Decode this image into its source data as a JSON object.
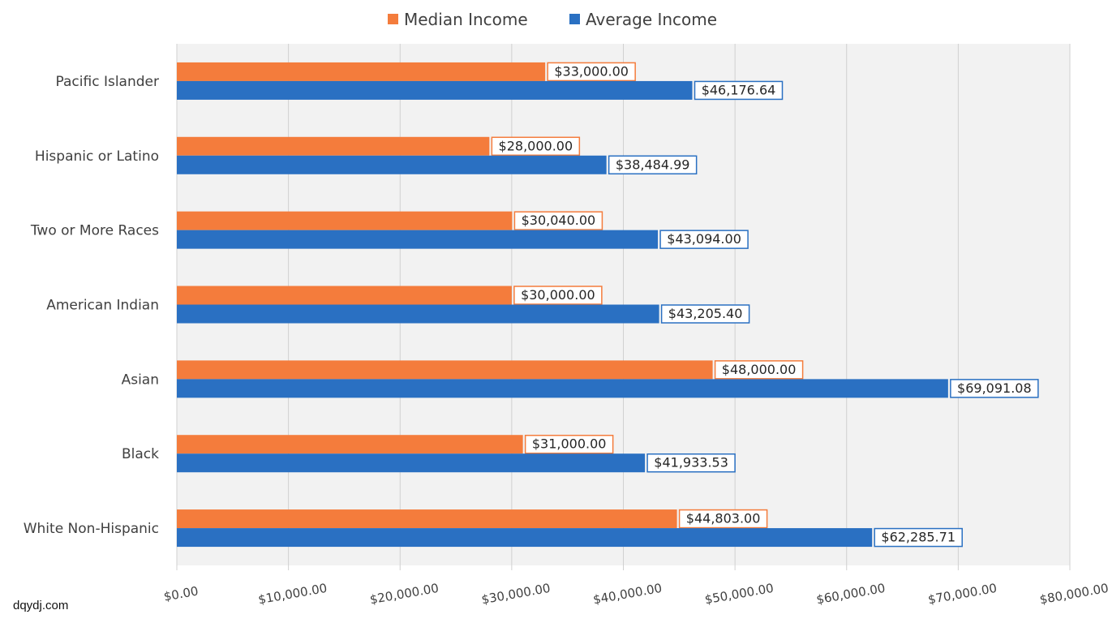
{
  "watermark": "dqydj.com",
  "chart_data": {
    "type": "bar",
    "orientation": "horizontal",
    "categories": [
      "Pacific Islander",
      "Hispanic or Latino",
      "Two or More Races",
      "American Indian",
      "Asian",
      "Black",
      "White Non-Hispanic"
    ],
    "series": [
      {
        "name": "Median Income",
        "color": "#f47c3c",
        "values": [
          33000.0,
          28000.0,
          30040.0,
          30000.0,
          48000.0,
          31000.0,
          44803.0
        ],
        "labels": [
          "$33,000.00",
          "$28,000.00",
          "$30,040.00",
          "$30,000.00",
          "$48,000.00",
          "$31,000.00",
          "$44,803.00"
        ]
      },
      {
        "name": "Average Income",
        "color": "#2a70c2",
        "values": [
          46176.64,
          38484.99,
          43094.0,
          43205.4,
          69091.08,
          41933.53,
          62285.71
        ],
        "labels": [
          "$46,176.64",
          "$38,484.99",
          "$43,094.00",
          "$43,205.40",
          "$69,091.08",
          "$41,933.53",
          "$62,285.71"
        ]
      }
    ],
    "xlim": [
      0,
      80000
    ],
    "xticks": [
      0,
      10000,
      20000,
      30000,
      40000,
      50000,
      60000,
      70000,
      80000
    ],
    "xtick_labels": [
      "$0.00",
      "$10,000.00",
      "$20,000.00",
      "$30,000.00",
      "$40,000.00",
      "$50,000.00",
      "$60,000.00",
      "$70,000.00",
      "$80,000.00"
    ],
    "grid": true,
    "legend_position": "top",
    "plot_background": "#f2f2f2"
  }
}
